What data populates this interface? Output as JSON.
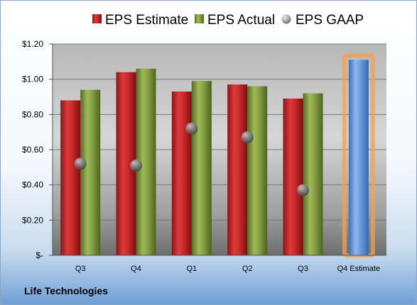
{
  "chart_data": {
    "type": "bar",
    "categories": [
      "Q3",
      "Q4",
      "Q1",
      "Q2",
      "Q3",
      "Q4 Estimate"
    ],
    "series": [
      {
        "name": "EPS Estimate",
        "values": [
          0.88,
          1.04,
          0.93,
          0.97,
          0.89,
          null
        ]
      },
      {
        "name": "EPS Actual",
        "values": [
          0.94,
          1.06,
          0.99,
          0.96,
          0.92,
          null
        ]
      },
      {
        "name": "EPS GAAP",
        "values": [
          0.52,
          0.51,
          0.72,
          0.67,
          0.37,
          null
        ]
      }
    ],
    "q4_estimate_value": 1.11,
    "y_ticks": [
      "$-",
      "$0.20",
      "$0.40",
      "$0.60",
      "$0.80",
      "$1.00",
      "$1.20"
    ],
    "ylim": [
      0,
      1.2
    ],
    "grid": true,
    "legend_position": "top",
    "colors": {
      "estimate": "#c0282a",
      "actual": "#7f9a3e",
      "gaap": "#9aa3ad",
      "q4_estimate": "#5b8fd6",
      "highlight": "#f5a050"
    }
  },
  "footer": {
    "company": "Life Technologies"
  }
}
